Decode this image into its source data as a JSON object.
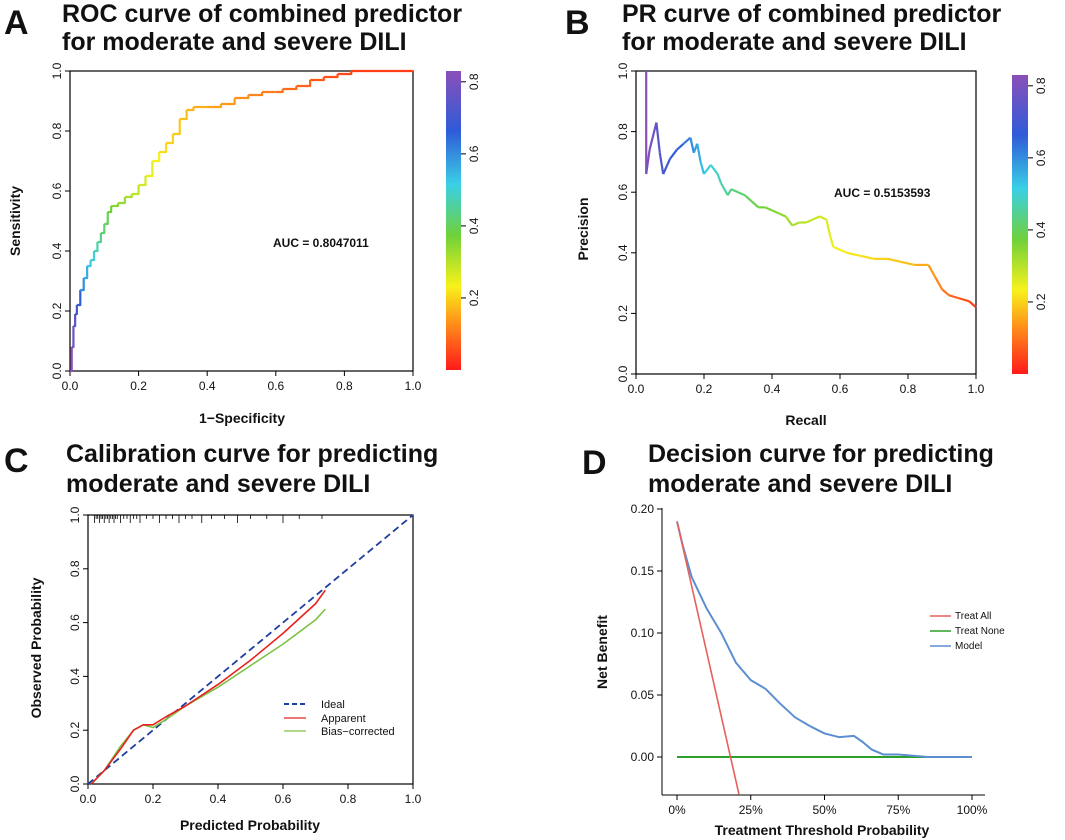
{
  "panels": {
    "A": {
      "label": "A",
      "title_line1": "ROC curve of combined predictor",
      "title_line2": "for moderate and severe DILI",
      "xlabel": "1−Specificity",
      "ylabel": "Sensitivity",
      "auc_text": "AUC = 0.8047011",
      "x_ticks": [
        "0.0",
        "0.2",
        "0.4",
        "0.6",
        "0.8",
        "1.0"
      ],
      "y_ticks": [
        "0.0",
        "0.2",
        "0.4",
        "0.6",
        "0.8",
        "1.0"
      ],
      "colorbar_ticks": [
        "0.2",
        "0.4",
        "0.6",
        "0.8"
      ]
    },
    "B": {
      "label": "B",
      "title_line1": "PR curve of combined predictor",
      "title_line2": "for moderate and severe DILI",
      "xlabel": "Recall",
      "ylabel": "Precision",
      "auc_text": "AUC = 0.5153593",
      "x_ticks": [
        "0.0",
        "0.2",
        "0.4",
        "0.6",
        "0.8",
        "1.0"
      ],
      "y_ticks": [
        "0.0",
        "0.2",
        "0.4",
        "0.6",
        "0.8",
        "1.0"
      ],
      "colorbar_ticks": [
        "0.2",
        "0.4",
        "0.6",
        "0.8"
      ]
    },
    "C": {
      "label": "C",
      "title_line1": "Calibration curve for predicting",
      "title_line2": "moderate and severe DILI",
      "xlabel": "Predicted Probability",
      "ylabel": "Observed Probability",
      "x_ticks": [
        "0.0",
        "0.2",
        "0.4",
        "0.6",
        "0.8",
        "1.0"
      ],
      "y_ticks": [
        "0.0",
        "0.2",
        "0.4",
        "0.6",
        "0.8",
        "1.0"
      ],
      "legend": [
        "Ideal",
        "Apparent",
        "Bias−corrected"
      ]
    },
    "D": {
      "label": "D",
      "title_line1": "Decision curve for predicting",
      "title_line2": "moderate and severe DILI",
      "xlabel": "Treatment Threshold Probability",
      "ylabel": "Net Benefit",
      "x_ticks": [
        "0%",
        "25%",
        "50%",
        "75%",
        "100%"
      ],
      "y_ticks": [
        "0.00",
        "0.05",
        "0.10",
        "0.15",
        "0.20"
      ],
      "legend": [
        "Treat All",
        "Treat None",
        "Model"
      ]
    }
  },
  "colors": {
    "ideal": "#1f3fa0",
    "apparent": "#e8211d",
    "bias_corrected": "#7cc242",
    "treat_all": "#e8605a",
    "treat_none": "#2aa02a",
    "model": "#5b8fd0"
  },
  "chart_data": [
    {
      "type": "line",
      "id": "A",
      "title": "ROC curve of combined predictor for moderate and severe DILI",
      "xlabel": "1−Specificity",
      "ylabel": "Sensitivity",
      "xlim": [
        0,
        1
      ],
      "ylim": [
        0,
        1
      ],
      "auc": 0.8047011,
      "colorbar": {
        "min": 0,
        "max": 0.83,
        "ticks": [
          0.2,
          0.4,
          0.6,
          0.8
        ],
        "palette": "rainbow"
      },
      "series": [
        {
          "name": "ROC",
          "x": [
            0,
            0.005,
            0.01,
            0.015,
            0.02,
            0.03,
            0.04,
            0.05,
            0.06,
            0.07,
            0.08,
            0.09,
            0.1,
            0.11,
            0.12,
            0.14,
            0.16,
            0.18,
            0.2,
            0.22,
            0.24,
            0.26,
            0.28,
            0.3,
            0.32,
            0.34,
            0.36,
            0.4,
            0.44,
            0.48,
            0.52,
            0.56,
            0.6,
            0.62,
            0.66,
            0.7,
            0.74,
            0.78,
            0.82,
            1.0
          ],
          "y": [
            0,
            0.08,
            0.15,
            0.19,
            0.22,
            0.27,
            0.31,
            0.35,
            0.37,
            0.4,
            0.43,
            0.46,
            0.49,
            0.53,
            0.55,
            0.56,
            0.58,
            0.59,
            0.62,
            0.65,
            0.7,
            0.73,
            0.76,
            0.79,
            0.84,
            0.87,
            0.88,
            0.88,
            0.89,
            0.91,
            0.92,
            0.93,
            0.93,
            0.94,
            0.95,
            0.97,
            0.98,
            0.99,
            1.0,
            1.0
          ],
          "thresholds": [
            0.83,
            0.78,
            0.74,
            0.7,
            0.66,
            0.6,
            0.56,
            0.52,
            0.5,
            0.47,
            0.44,
            0.42,
            0.4,
            0.37,
            0.35,
            0.33,
            0.31,
            0.29,
            0.27,
            0.25,
            0.23,
            0.21,
            0.2,
            0.19,
            0.18,
            0.17,
            0.16,
            0.15,
            0.14,
            0.13,
            0.12,
            0.11,
            0.1,
            0.09,
            0.08,
            0.07,
            0.06,
            0.05,
            0.04,
            0.02
          ]
        }
      ]
    },
    {
      "type": "line",
      "id": "B",
      "title": "PR curve of combined predictor for moderate and severe DILI",
      "xlabel": "Recall",
      "ylabel": "Precision",
      "xlim": [
        0,
        1
      ],
      "ylim": [
        0,
        1
      ],
      "auc": 0.5153593,
      "colorbar": {
        "min": 0,
        "max": 0.83,
        "ticks": [
          0.2,
          0.4,
          0.6,
          0.8
        ],
        "palette": "rainbow"
      },
      "series": [
        {
          "name": "PR",
          "x": [
            0.03,
            0.03,
            0.04,
            0.06,
            0.07,
            0.08,
            0.1,
            0.12,
            0.14,
            0.16,
            0.17,
            0.18,
            0.19,
            0.2,
            0.22,
            0.24,
            0.25,
            0.27,
            0.28,
            0.3,
            0.32,
            0.34,
            0.36,
            0.38,
            0.4,
            0.42,
            0.44,
            0.46,
            0.48,
            0.5,
            0.52,
            0.54,
            0.56,
            0.57,
            0.58,
            0.6,
            0.62,
            0.66,
            0.7,
            0.74,
            0.78,
            0.82,
            0.86,
            0.88,
            0.9,
            0.92,
            0.95,
            0.98,
            1.0
          ],
          "y": [
            1.0,
            0.66,
            0.74,
            0.83,
            0.73,
            0.66,
            0.71,
            0.74,
            0.76,
            0.78,
            0.73,
            0.76,
            0.7,
            0.66,
            0.69,
            0.66,
            0.63,
            0.59,
            0.61,
            0.6,
            0.59,
            0.57,
            0.55,
            0.55,
            0.54,
            0.53,
            0.52,
            0.49,
            0.5,
            0.5,
            0.51,
            0.52,
            0.51,
            0.46,
            0.42,
            0.41,
            0.4,
            0.39,
            0.38,
            0.38,
            0.37,
            0.36,
            0.36,
            0.32,
            0.28,
            0.26,
            0.25,
            0.24,
            0.22
          ],
          "thresholds": [
            0.83,
            0.8,
            0.78,
            0.75,
            0.72,
            0.7,
            0.67,
            0.65,
            0.62,
            0.6,
            0.58,
            0.56,
            0.54,
            0.52,
            0.5,
            0.48,
            0.46,
            0.44,
            0.43,
            0.42,
            0.4,
            0.39,
            0.37,
            0.36,
            0.35,
            0.34,
            0.32,
            0.31,
            0.3,
            0.29,
            0.28,
            0.27,
            0.26,
            0.25,
            0.24,
            0.23,
            0.22,
            0.21,
            0.2,
            0.19,
            0.18,
            0.16,
            0.14,
            0.12,
            0.1,
            0.08,
            0.06,
            0.04,
            0.02
          ]
        }
      ]
    },
    {
      "type": "line",
      "id": "C",
      "title": "Calibration curve for predicting moderate and severe DILI",
      "xlabel": "Predicted Probability",
      "ylabel": "Observed Probability",
      "xlim": [
        0,
        1
      ],
      "ylim": [
        0,
        1
      ],
      "legend_position": "center-right",
      "rug_x": [
        0.02,
        0.025,
        0.03,
        0.035,
        0.04,
        0.045,
        0.05,
        0.055,
        0.06,
        0.065,
        0.07,
        0.075,
        0.08,
        0.085,
        0.09,
        0.1,
        0.11,
        0.12,
        0.13,
        0.14,
        0.15,
        0.16,
        0.18,
        0.2,
        0.22,
        0.24,
        0.26,
        0.28,
        0.3,
        0.32,
        0.35,
        0.38,
        0.42,
        0.46,
        0.5,
        0.55,
        0.6,
        0.65,
        0.72
      ],
      "series": [
        {
          "name": "Ideal",
          "style": "dashed",
          "x": [
            0,
            1
          ],
          "y": [
            0,
            1
          ]
        },
        {
          "name": "Apparent",
          "x": [
            0.01,
            0.05,
            0.1,
            0.14,
            0.17,
            0.2,
            0.24,
            0.3,
            0.4,
            0.5,
            0.6,
            0.7,
            0.73
          ],
          "y": [
            0.0,
            0.05,
            0.13,
            0.2,
            0.22,
            0.22,
            0.25,
            0.29,
            0.37,
            0.46,
            0.56,
            0.67,
            0.72
          ]
        },
        {
          "name": "Bias−corrected",
          "x": [
            0.01,
            0.05,
            0.1,
            0.14,
            0.17,
            0.2,
            0.24,
            0.3,
            0.4,
            0.5,
            0.6,
            0.7,
            0.73
          ],
          "y": [
            0.0,
            0.05,
            0.14,
            0.2,
            0.22,
            0.21,
            0.24,
            0.29,
            0.36,
            0.44,
            0.52,
            0.61,
            0.65
          ]
        }
      ]
    },
    {
      "type": "line",
      "id": "D",
      "title": "Decision curve for predicting moderate and severe DILI",
      "xlabel": "Treatment Threshold Probability",
      "ylabel": "Net Benefit",
      "xlim": [
        0,
        1
      ],
      "ylim": [
        -0.02,
        0.2
      ],
      "legend_position": "center-right",
      "series": [
        {
          "name": "Treat All",
          "x": [
            0,
            0.21
          ],
          "y": [
            0.19,
            -0.03
          ]
        },
        {
          "name": "Treat None",
          "x": [
            0,
            1.0
          ],
          "y": [
            0,
            0
          ]
        },
        {
          "name": "Model",
          "x": [
            0,
            0.02,
            0.05,
            0.1,
            0.15,
            0.2,
            0.25,
            0.3,
            0.35,
            0.4,
            0.45,
            0.5,
            0.55,
            0.6,
            0.63,
            0.66,
            0.7,
            0.75,
            0.8,
            0.85,
            0.9,
            1.0
          ],
          "y": [
            0.19,
            0.17,
            0.145,
            0.12,
            0.1,
            0.076,
            0.062,
            0.055,
            0.043,
            0.032,
            0.025,
            0.019,
            0.016,
            0.017,
            0.012,
            0.006,
            0.002,
            0.002,
            0.001,
            0.0,
            0.0,
            0.0
          ]
        }
      ]
    }
  ]
}
